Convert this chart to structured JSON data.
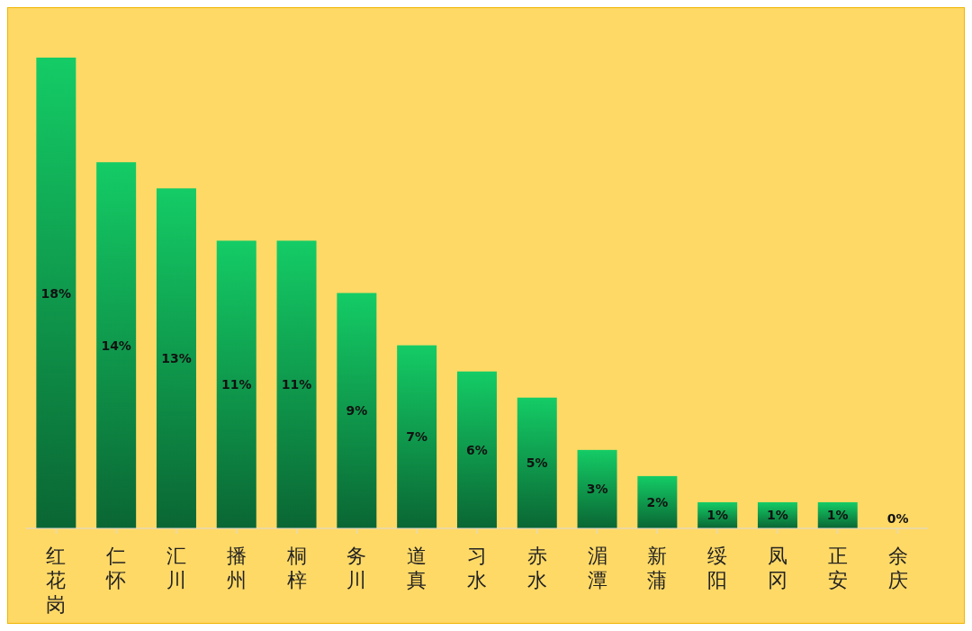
{
  "chart_data": {
    "type": "bar",
    "categories": [
      "红花岗",
      "仁怀",
      "汇川",
      "播州",
      "桐梓",
      "务川",
      "道真",
      "习水",
      "赤水",
      "湄潭",
      "新蒲",
      "绥阳",
      "凤冈",
      "正安",
      "余庆"
    ],
    "values": [
      18,
      14,
      13,
      11,
      11,
      9,
      7,
      6,
      5,
      3,
      2,
      1,
      1,
      1,
      0
    ],
    "value_labels": [
      "18%",
      "14%",
      "13%",
      "11%",
      "11%",
      "9%",
      "7%",
      "6%",
      "5%",
      "3%",
      "2%",
      "1%",
      "1%",
      "1%",
      "0%"
    ],
    "color": "#14cc66",
    "tick_labels": "x",
    "grid": false,
    "legend": false
  }
}
